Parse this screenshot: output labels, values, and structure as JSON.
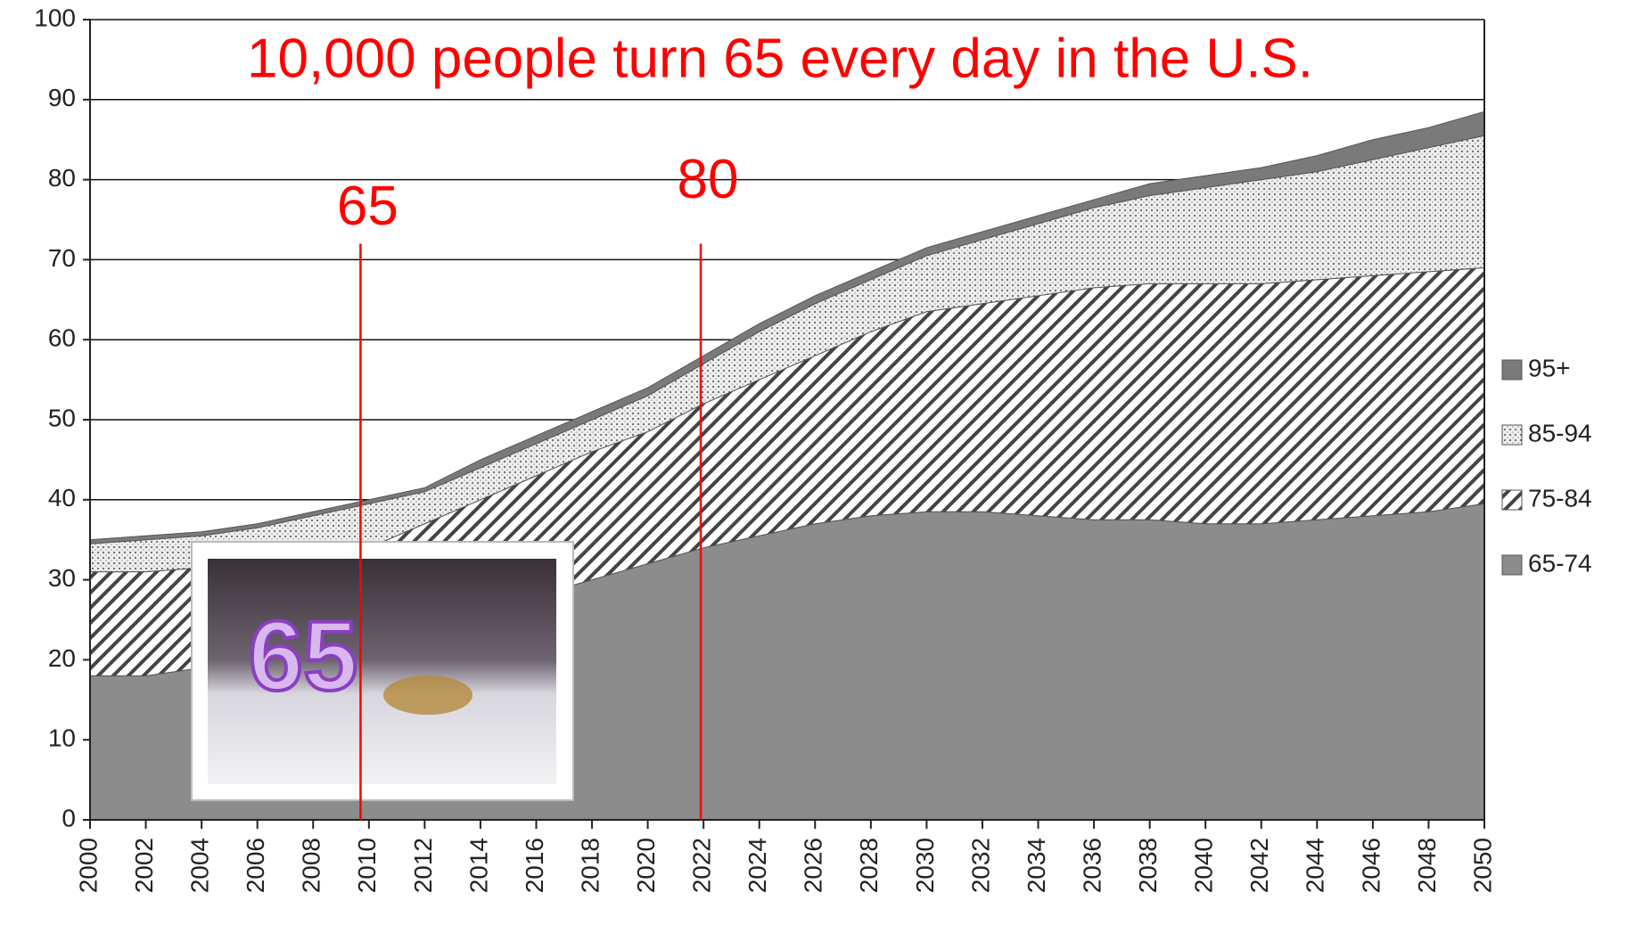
{
  "chart_data": {
    "type": "stacked_area",
    "title": "10,000 people turn 65 every day in the U.S.",
    "x": [
      2000,
      2002,
      2004,
      2006,
      2008,
      2010,
      2012,
      2014,
      2016,
      2018,
      2020,
      2022,
      2024,
      2026,
      2028,
      2030,
      2032,
      2034,
      2036,
      2038,
      2040,
      2042,
      2044,
      2046,
      2048,
      2050
    ],
    "xlim": [
      2000,
      2050
    ],
    "xticks": [
      2000,
      2002,
      2004,
      2006,
      2008,
      2010,
      2012,
      2014,
      2016,
      2018,
      2020,
      2022,
      2024,
      2026,
      2028,
      2030,
      2032,
      2034,
      2036,
      2038,
      2040,
      2042,
      2044,
      2046,
      2048,
      2050
    ],
    "ylim": [
      0,
      100
    ],
    "yticks": [
      0,
      10,
      20,
      30,
      40,
      50,
      60,
      70,
      80,
      90,
      100
    ],
    "grid": true,
    "legend": "right",
    "series": [
      {
        "name": "65-74",
        "color": "#8c8c8c",
        "hatch": "solid",
        "values": [
          18,
          18,
          19,
          20,
          21,
          22,
          24,
          26,
          28,
          30,
          32,
          34,
          35.5,
          37,
          38,
          38.5,
          38.5,
          38,
          37.5,
          37.5,
          37,
          37,
          37.5,
          38,
          38.5,
          39.5
        ]
      },
      {
        "name": "75-84",
        "color": "#555555",
        "hatch": "diagonal",
        "values": [
          13,
          13,
          12.5,
          12,
          12,
          12,
          13,
          14,
          15,
          16,
          16.5,
          18,
          19.5,
          21,
          23,
          25,
          26,
          27.5,
          29,
          29.5,
          30,
          30,
          30,
          30,
          30,
          29.5
        ]
      },
      {
        "name": "85-94",
        "color": "#777777",
        "hatch": "dots",
        "values": [
          3.5,
          4,
          4,
          4.5,
          5,
          5.5,
          4,
          4,
          4,
          4,
          4.5,
          5,
          6,
          6.5,
          6.5,
          7,
          8,
          9,
          10,
          11,
          12,
          13,
          13.5,
          14.5,
          15.5,
          16.5
        ]
      },
      {
        "name": "95+",
        "color": "#7a7a7a",
        "hatch": "solid",
        "values": [
          0.5,
          0.5,
          0.5,
          0.5,
          0.5,
          0.5,
          0.5,
          1,
          1,
          1,
          1,
          1,
          1,
          1,
          1,
          1,
          1,
          1,
          1,
          1.5,
          1.5,
          1.5,
          2,
          2.5,
          2.5,
          3
        ]
      }
    ],
    "annotations": [
      {
        "label": "65",
        "x": 2009.7,
        "color": "#ff0000"
      },
      {
        "label": "80",
        "x": 2021.9,
        "color": "#ff0000"
      }
    ]
  }
}
